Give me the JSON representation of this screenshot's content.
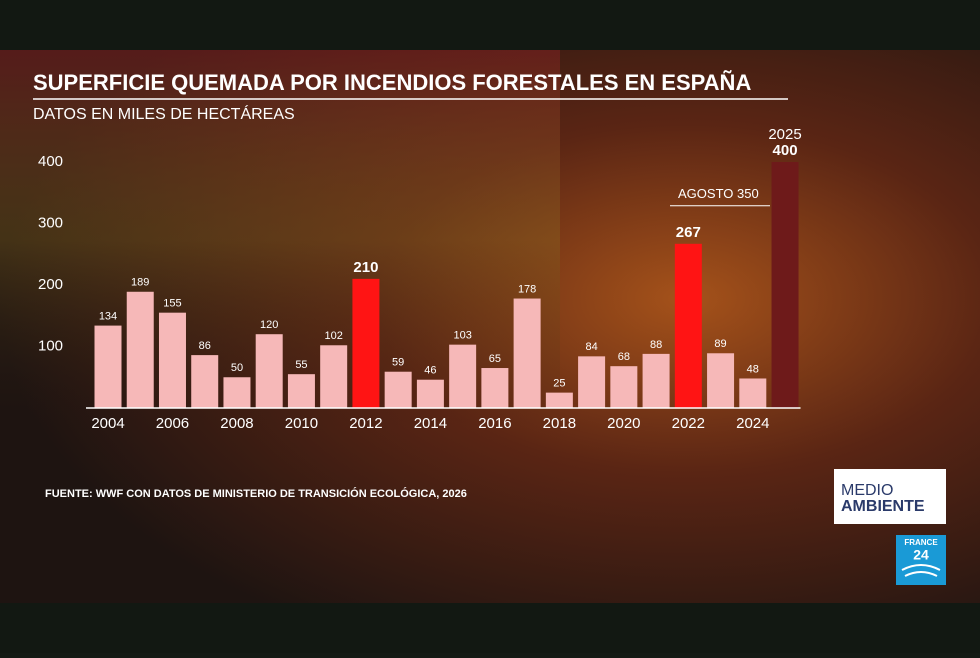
{
  "chart_data": {
    "type": "bar",
    "title": "SUPERFICIE QUEMADA POR INCENDIOS FORESTALES EN ESPAÑA",
    "subtitle": "DATOS EN MILES DE HECTÁREAS",
    "categories": [
      "2004",
      null,
      "2006",
      null,
      "2008",
      null,
      "2010",
      null,
      "2012",
      null,
      "2014",
      null,
      "2016",
      null,
      "2018",
      null,
      "2020",
      null,
      "2022",
      null,
      "2024",
      "2025"
    ],
    "values": [
      134,
      189,
      155,
      86,
      50,
      120,
      55,
      102,
      210,
      59,
      46,
      103,
      65,
      178,
      25,
      84,
      68,
      88,
      267,
      89,
      48,
      400
    ],
    "color": "#f6b8b8",
    "colors": [
      "#f6b8b8",
      "#f6b8b8",
      "#f6b8b8",
      "#f6b8b8",
      "#f6b8b8",
      "#f6b8b8",
      "#f6b8b8",
      "#f6b8b8",
      "#ff1414",
      "#f6b8b8",
      "#f6b8b8",
      "#f6b8b8",
      "#f6b8b8",
      "#f6b8b8",
      "#f6b8b8",
      "#f6b8b8",
      "#f6b8b8",
      "#f6b8b8",
      "#ff1414",
      "#f6b8b8",
      "#f6b8b8",
      "#6e1a1a"
    ],
    "ylim": [
      0,
      400
    ],
    "yticks": [
      100,
      200,
      300,
      400
    ],
    "grid": false,
    "annotation": {
      "text": "AGOSTO 350",
      "value": 350
    },
    "source": "FUENTE: WWF CON DATOS DE MINISTERIO DE TRANSICIÓN ECOLÓGICA, 2026"
  },
  "branding": {
    "section": [
      "MEDIO",
      "AMBIENTE"
    ],
    "channel": [
      "FRANCE",
      "24"
    ]
  }
}
